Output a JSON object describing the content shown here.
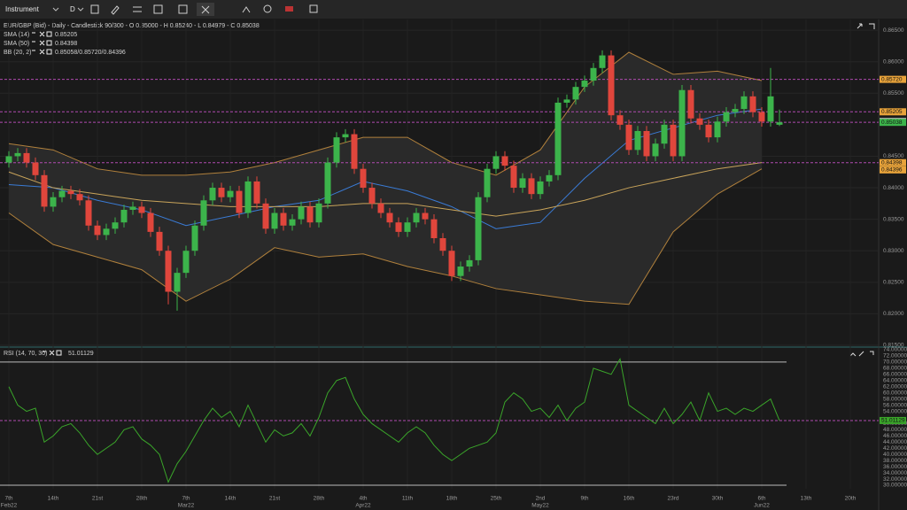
{
  "toolbar": {
    "instrument": "Instrument",
    "timeframe": "D"
  },
  "chart_data": {
    "type": "candlestick",
    "title": "EUR/GBP (Bid) - Daily - Candlestick  90/300 - O 0.85000 - H 0.85240 - L 0.84979 - C 0.85038",
    "up_color": "#3cb44b",
    "down_color": "#e0463c",
    "ylim": [
      0.815,
      0.8667
    ],
    "yticks": [
      {
        "value": 0.865,
        "label": "0.86500"
      },
      {
        "value": 0.86,
        "label": "0.86000"
      },
      {
        "value": 0.855,
        "label": "0.85500"
      },
      {
        "value": 0.845,
        "label": "0.84500"
      },
      {
        "value": 0.84,
        "label": "0.84000"
      },
      {
        "value": 0.835,
        "label": "0.83500"
      },
      {
        "value": 0.83,
        "label": "0.83000"
      },
      {
        "value": 0.825,
        "label": "0.82500"
      },
      {
        "value": 0.82,
        "label": "0.82000"
      },
      {
        "value": 0.815,
        "label": "0.81500"
      }
    ],
    "x_labels": [
      "7th",
      "14th",
      "21st",
      "28th",
      "7th",
      "14th",
      "21st",
      "28th",
      "4th",
      "11th",
      "18th",
      "25th",
      "2nd",
      "9th",
      "16th",
      "23rd",
      "30th",
      "6th",
      "13th",
      "20th"
    ],
    "x_months": [
      "Feb22",
      null,
      null,
      null,
      "Mar22",
      null,
      null,
      null,
      "Apr22",
      null,
      null,
      null,
      "May22",
      null,
      null,
      null,
      null,
      "Jun22",
      null,
      null
    ],
    "ohlc": [
      [
        0.844,
        0.8458,
        0.8432,
        0.845
      ],
      [
        0.845,
        0.8463,
        0.8442,
        0.8455
      ],
      [
        0.8455,
        0.8463,
        0.8432,
        0.844
      ],
      [
        0.844,
        0.8448,
        0.8412,
        0.842
      ],
      [
        0.842,
        0.8428,
        0.8362,
        0.837
      ],
      [
        0.837,
        0.8393,
        0.8362,
        0.8385
      ],
      [
        0.8385,
        0.8403,
        0.8377,
        0.8395
      ],
      [
        0.8395,
        0.8403,
        0.8382,
        0.839
      ],
      [
        0.839,
        0.8398,
        0.8372,
        0.838
      ],
      [
        0.838,
        0.8388,
        0.8332,
        0.834
      ],
      [
        0.834,
        0.8348,
        0.8317,
        0.8325
      ],
      [
        0.8325,
        0.8343,
        0.8317,
        0.8335
      ],
      [
        0.8335,
        0.8353,
        0.8327,
        0.8345
      ],
      [
        0.8345,
        0.8373,
        0.8337,
        0.8365
      ],
      [
        0.8365,
        0.8378,
        0.8357,
        0.837
      ],
      [
        0.837,
        0.8378,
        0.8352,
        0.836
      ],
      [
        0.836,
        0.8368,
        0.8322,
        0.833
      ],
      [
        0.833,
        0.8338,
        0.8292,
        0.83
      ],
      [
        0.83,
        0.8308,
        0.8215,
        0.8235
      ],
      [
        0.8235,
        0.8273,
        0.8205,
        0.8265
      ],
      [
        0.8265,
        0.8308,
        0.8257,
        0.83
      ],
      [
        0.83,
        0.8348,
        0.8292,
        0.834
      ],
      [
        0.834,
        0.8388,
        0.8332,
        0.838
      ],
      [
        0.838,
        0.8408,
        0.8372,
        0.84
      ],
      [
        0.84,
        0.8408,
        0.8377,
        0.8385
      ],
      [
        0.8385,
        0.8403,
        0.8377,
        0.8395
      ],
      [
        0.8395,
        0.8403,
        0.8352,
        0.836
      ],
      [
        0.836,
        0.8418,
        0.8352,
        0.841
      ],
      [
        0.841,
        0.8418,
        0.8367,
        0.8375
      ],
      [
        0.8375,
        0.8383,
        0.8327,
        0.8335
      ],
      [
        0.8335,
        0.8368,
        0.8327,
        0.836
      ],
      [
        0.836,
        0.8368,
        0.8332,
        0.834
      ],
      [
        0.834,
        0.8358,
        0.8332,
        0.835
      ],
      [
        0.835,
        0.8378,
        0.8342,
        0.837
      ],
      [
        0.837,
        0.8378,
        0.8337,
        0.8345
      ],
      [
        0.8345,
        0.8383,
        0.8337,
        0.8375
      ],
      [
        0.8375,
        0.8448,
        0.8367,
        0.844
      ],
      [
        0.844,
        0.8488,
        0.8432,
        0.848
      ],
      [
        0.848,
        0.8493,
        0.8472,
        0.8485
      ],
      [
        0.8485,
        0.8493,
        0.8422,
        0.843
      ],
      [
        0.843,
        0.8438,
        0.8392,
        0.84
      ],
      [
        0.84,
        0.8408,
        0.8367,
        0.8375
      ],
      [
        0.8375,
        0.8383,
        0.8352,
        0.836
      ],
      [
        0.836,
        0.8368,
        0.8337,
        0.8345
      ],
      [
        0.8345,
        0.8353,
        0.8322,
        0.833
      ],
      [
        0.833,
        0.8353,
        0.8322,
        0.8345
      ],
      [
        0.8345,
        0.8368,
        0.8337,
        0.836
      ],
      [
        0.836,
        0.8368,
        0.8342,
        0.835
      ],
      [
        0.835,
        0.8358,
        0.8312,
        0.832
      ],
      [
        0.832,
        0.8328,
        0.8292,
        0.83
      ],
      [
        0.83,
        0.8308,
        0.8252,
        0.826
      ],
      [
        0.826,
        0.8283,
        0.8252,
        0.8275
      ],
      [
        0.8275,
        0.8293,
        0.8267,
        0.8285
      ],
      [
        0.8285,
        0.8393,
        0.8277,
        0.8385
      ],
      [
        0.8385,
        0.8438,
        0.8377,
        0.843
      ],
      [
        0.843,
        0.8458,
        0.8422,
        0.845
      ],
      [
        0.845,
        0.8458,
        0.8427,
        0.8435
      ],
      [
        0.8435,
        0.8443,
        0.8392,
        0.84
      ],
      [
        0.84,
        0.8423,
        0.8392,
        0.8415
      ],
      [
        0.8415,
        0.8423,
        0.8382,
        0.839
      ],
      [
        0.839,
        0.8418,
        0.8382,
        0.841
      ],
      [
        0.841,
        0.8428,
        0.8402,
        0.842
      ],
      [
        0.842,
        0.8543,
        0.8412,
        0.8535
      ],
      [
        0.8535,
        0.8548,
        0.8527,
        0.854
      ],
      [
        0.854,
        0.8568,
        0.8532,
        0.856
      ],
      [
        0.856,
        0.8578,
        0.8552,
        0.857
      ],
      [
        0.857,
        0.8598,
        0.8562,
        0.859
      ],
      [
        0.859,
        0.8618,
        0.8582,
        0.861
      ],
      [
        0.861,
        0.8618,
        0.8507,
        0.8515
      ],
      [
        0.8515,
        0.8523,
        0.8492,
        0.85
      ],
      [
        0.85,
        0.8508,
        0.8452,
        0.846
      ],
      [
        0.846,
        0.8498,
        0.8452,
        0.849
      ],
      [
        0.849,
        0.8498,
        0.8442,
        0.845
      ],
      [
        0.845,
        0.8478,
        0.8442,
        0.847
      ],
      [
        0.847,
        0.8508,
        0.8462,
        0.85
      ],
      [
        0.85,
        0.8508,
        0.8442,
        0.845
      ],
      [
        0.845,
        0.8563,
        0.8442,
        0.8555
      ],
      [
        0.8555,
        0.8563,
        0.8502,
        0.851
      ],
      [
        0.851,
        0.8518,
        0.8492,
        0.85
      ],
      [
        0.85,
        0.8508,
        0.8472,
        0.848
      ],
      [
        0.848,
        0.8513,
        0.8472,
        0.8505
      ],
      [
        0.8505,
        0.8528,
        0.8497,
        0.852
      ],
      [
        0.852,
        0.8533,
        0.8512,
        0.8525
      ],
      [
        0.8525,
        0.8553,
        0.8517,
        0.8545
      ],
      [
        0.8545,
        0.8553,
        0.8512,
        0.852
      ],
      [
        0.852,
        0.8528,
        0.8497,
        0.8505
      ],
      [
        0.8505,
        0.859,
        0.8497,
        0.8545
      ],
      [
        0.85,
        0.8524,
        0.84979,
        0.85038
      ]
    ],
    "series": [
      {
        "name": "SMA (14)",
        "value_label": "0.85205",
        "color": "#3a7bd5",
        "values": [
          0.8405,
          0.84,
          0.838,
          0.8365,
          0.834,
          0.8355,
          0.837,
          0.838,
          0.841,
          0.8395,
          0.837,
          0.8335,
          0.8345,
          0.8415,
          0.8475,
          0.8495,
          0.8515,
          0.8525,
          null,
          null
        ]
      },
      {
        "name": "SMA (50)",
        "value_label": "0.84398",
        "color": "#c9a45a",
        "values": [
          0.8425,
          0.84,
          0.839,
          0.838,
          0.8375,
          0.837,
          0.837,
          0.837,
          0.8375,
          0.8375,
          0.8365,
          0.8355,
          0.8365,
          0.838,
          0.84,
          0.8415,
          0.843,
          0.844,
          null,
          null
        ]
      }
    ],
    "bands": {
      "name": "BB (20, 2)",
      "value_label": "0.85058/0.85720/0.84396",
      "color": "#b0803c",
      "upper": [
        0.847,
        0.846,
        0.843,
        0.842,
        0.842,
        0.8425,
        0.844,
        0.846,
        0.848,
        0.848,
        0.844,
        0.842,
        0.846,
        0.856,
        0.8615,
        0.858,
        0.8585,
        0.857,
        null,
        null
      ],
      "lower": [
        0.836,
        0.831,
        0.829,
        0.827,
        0.822,
        0.8255,
        0.8305,
        0.829,
        0.8295,
        0.8275,
        0.826,
        0.824,
        0.823,
        0.822,
        0.8215,
        0.833,
        0.839,
        0.843,
        null,
        null
      ]
    },
    "price_markers": [
      {
        "value": 0.8572,
        "label": "0.85720",
        "color": "#e8a33a",
        "line": true
      },
      {
        "value": 0.85205,
        "label": "0.85205",
        "color": "#e8a33a",
        "line": true
      },
      {
        "value": 0.8505,
        "label": "0.85050",
        "color": "#dddddd",
        "line": false
      },
      {
        "value": 0.85038,
        "label": "0.85038",
        "color": "#3cb44b",
        "line": true
      },
      {
        "value": 0.84398,
        "label": "0.84398",
        "color": "#e8a33a",
        "line": true
      },
      {
        "value": 0.84396,
        "label": "0.84396",
        "color": "#e8a33a",
        "line": false
      }
    ],
    "rsi": {
      "name": "RSI (14, 70, 30)",
      "value_label": "51.01129",
      "value": 51.01129,
      "color": "#3aa52a",
      "ylim": [
        28.85,
        74
      ],
      "levels": [
        70,
        30
      ],
      "yticks": [
        {
          "value": 74,
          "label": "74.00000"
        },
        {
          "value": 72,
          "label": "72.00000"
        },
        {
          "value": 70,
          "label": "70.00000"
        },
        {
          "value": 68,
          "label": "68.00000"
        },
        {
          "value": 66,
          "label": "66.00000"
        },
        {
          "value": 64,
          "label": "64.00000"
        },
        {
          "value": 62,
          "label": "62.00000"
        },
        {
          "value": 60,
          "label": "60.00000"
        },
        {
          "value": 58,
          "label": "58.00000"
        },
        {
          "value": 56,
          "label": "56.00000"
        },
        {
          "value": 54,
          "label": "54.00000"
        },
        {
          "value": 50,
          "label": "50.00000"
        },
        {
          "value": 48,
          "label": "48.00000"
        },
        {
          "value": 46,
          "label": "46.00000"
        },
        {
          "value": 44,
          "label": "44.00000"
        },
        {
          "value": 42,
          "label": "42.00000"
        },
        {
          "value": 40,
          "label": "40.00000"
        },
        {
          "value": 38,
          "label": "38.00000"
        },
        {
          "value": 36,
          "label": "36.00000"
        },
        {
          "value": 34,
          "label": "34.00000"
        },
        {
          "value": 32,
          "label": "32.00000"
        },
        {
          "value": 30,
          "label": "30.00000"
        }
      ],
      "values": [
        62,
        56,
        54,
        55,
        44,
        46,
        49,
        50,
        47,
        43,
        40,
        42,
        44,
        48,
        49,
        45,
        43,
        40,
        31,
        37,
        41,
        46,
        51,
        55,
        52,
        54,
        49,
        56,
        50,
        44,
        48,
        46,
        47,
        50,
        46,
        52,
        60,
        64,
        65,
        58,
        53,
        50,
        48,
        46,
        44,
        47,
        49,
        47,
        43,
        40,
        38,
        40,
        42,
        43,
        44,
        47,
        57,
        60,
        58,
        54,
        55,
        52,
        56,
        51,
        55,
        57,
        68,
        67,
        66,
        71,
        56,
        54,
        52,
        50,
        55,
        50,
        53,
        57,
        51,
        60,
        54,
        55,
        53,
        55,
        54,
        56,
        58,
        51.01129
      ]
    }
  }
}
